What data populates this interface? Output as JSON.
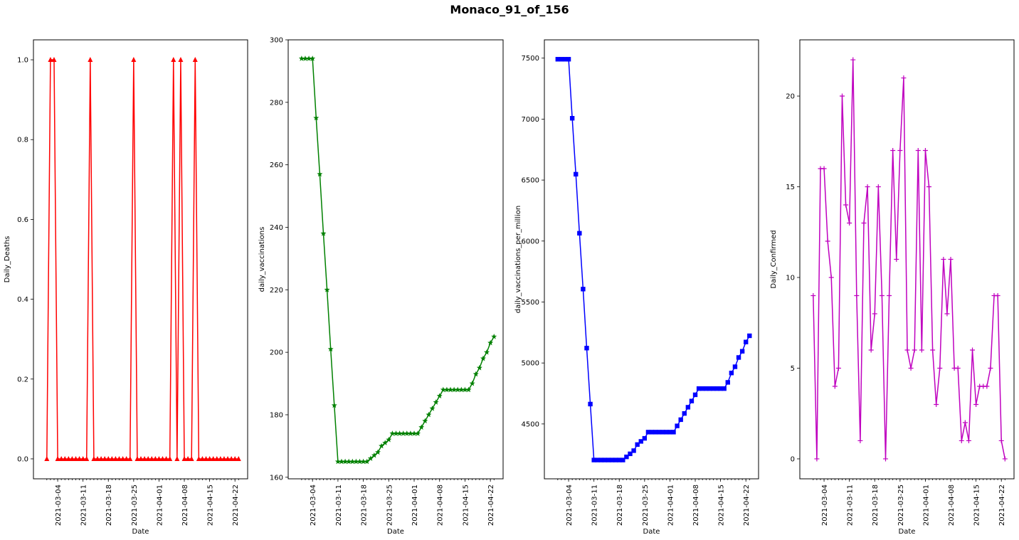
{
  "figure": {
    "suptitle": "Monaco_91_of_156"
  },
  "chart_data": [
    {
      "type": "line",
      "color": "#ff0000",
      "marker": "triangle",
      "xlabel": "Date",
      "ylabel": "Daily_Deaths",
      "ylim": [
        -0.05,
        1.05
      ],
      "yticks": [
        0.0,
        0.2,
        0.4,
        0.6,
        0.8,
        1.0
      ],
      "ytick_labels": [
        "0.0",
        "0.2",
        "0.4",
        "0.6",
        "0.8",
        "1.0"
      ],
      "xticks": [
        "2021-03-04",
        "2021-03-11",
        "2021-03-18",
        "2021-03-25",
        "2021-04-01",
        "2021-04-08",
        "2021-04-15",
        "2021-04-22"
      ],
      "x": [
        "2021-03-01",
        "2021-03-02",
        "2021-03-03",
        "2021-03-04",
        "2021-03-05",
        "2021-03-06",
        "2021-03-07",
        "2021-03-08",
        "2021-03-09",
        "2021-03-10",
        "2021-03-11",
        "2021-03-12",
        "2021-03-13",
        "2021-03-14",
        "2021-03-15",
        "2021-03-16",
        "2021-03-17",
        "2021-03-18",
        "2021-03-19",
        "2021-03-20",
        "2021-03-21",
        "2021-03-22",
        "2021-03-23",
        "2021-03-24",
        "2021-03-25",
        "2021-03-26",
        "2021-03-27",
        "2021-03-28",
        "2021-03-29",
        "2021-03-30",
        "2021-03-31",
        "2021-04-01",
        "2021-04-02",
        "2021-04-03",
        "2021-04-04",
        "2021-04-05",
        "2021-04-06",
        "2021-04-07",
        "2021-04-08",
        "2021-04-09",
        "2021-04-10",
        "2021-04-11",
        "2021-04-12",
        "2021-04-13",
        "2021-04-14",
        "2021-04-15",
        "2021-04-16",
        "2021-04-17",
        "2021-04-18",
        "2021-04-19",
        "2021-04-20",
        "2021-04-21",
        "2021-04-22",
        "2021-04-23"
      ],
      "values": [
        0,
        1,
        1,
        0,
        0,
        0,
        0,
        0,
        0,
        0,
        0,
        0,
        1,
        0,
        0,
        0,
        0,
        0,
        0,
        0,
        0,
        0,
        0,
        0,
        1,
        0,
        0,
        0,
        0,
        0,
        0,
        0,
        0,
        0,
        0,
        1,
        0,
        1,
        0,
        0,
        0,
        1,
        0,
        0,
        0,
        0,
        0,
        0,
        0,
        0,
        0,
        0,
        0,
        0
      ]
    },
    {
      "type": "line",
      "color": "#008000",
      "marker": "star",
      "xlabel": "Date",
      "ylabel": "daily_vaccinations",
      "ylim": [
        159.5,
        300
      ],
      "yticks": [
        160,
        180,
        200,
        220,
        240,
        260,
        280,
        300
      ],
      "ytick_labels": [
        "160",
        "180",
        "200",
        "220",
        "240",
        "260",
        "280",
        "300"
      ],
      "xticks": [
        "2021-03-04",
        "2021-03-11",
        "2021-03-18",
        "2021-03-25",
        "2021-04-01",
        "2021-04-08",
        "2021-04-15",
        "2021-04-22"
      ],
      "x": [
        "2021-03-01",
        "2021-03-02",
        "2021-03-03",
        "2021-03-04",
        "2021-03-05",
        "2021-03-06",
        "2021-03-07",
        "2021-03-08",
        "2021-03-09",
        "2021-03-10",
        "2021-03-11",
        "2021-03-12",
        "2021-03-13",
        "2021-03-14",
        "2021-03-15",
        "2021-03-16",
        "2021-03-17",
        "2021-03-18",
        "2021-03-19",
        "2021-03-20",
        "2021-03-21",
        "2021-03-22",
        "2021-03-23",
        "2021-03-24",
        "2021-03-25",
        "2021-03-26",
        "2021-03-27",
        "2021-03-28",
        "2021-03-29",
        "2021-03-30",
        "2021-03-31",
        "2021-04-01",
        "2021-04-02",
        "2021-04-03",
        "2021-04-04",
        "2021-04-05",
        "2021-04-06",
        "2021-04-07",
        "2021-04-08",
        "2021-04-09",
        "2021-04-10",
        "2021-04-11",
        "2021-04-12",
        "2021-04-13",
        "2021-04-14",
        "2021-04-15",
        "2021-04-16",
        "2021-04-17",
        "2021-04-18",
        "2021-04-19",
        "2021-04-20",
        "2021-04-21",
        "2021-04-22",
        "2021-04-23"
      ],
      "values": [
        294,
        294,
        294,
        294,
        275,
        257,
        238,
        220,
        201,
        183,
        165,
        165,
        165,
        165,
        165,
        165,
        165,
        165,
        165,
        166,
        167,
        168,
        170,
        171,
        172,
        174,
        174,
        174,
        174,
        174,
        174,
        174,
        174,
        176,
        178,
        180,
        182,
        184,
        186,
        188,
        188,
        188,
        188,
        188,
        188,
        188,
        188,
        190,
        193,
        195,
        198,
        200,
        203,
        205
      ]
    },
    {
      "type": "line",
      "color": "#0000ff",
      "marker": "square",
      "xlabel": "Date",
      "ylabel": "daily_vaccinations_per_million",
      "ylim": [
        4050,
        7650
      ],
      "yticks": [
        4500,
        5000,
        5500,
        6000,
        6500,
        7000,
        7500
      ],
      "ytick_labels": [
        "4500",
        "5000",
        "5500",
        "6000",
        "6500",
        "7000",
        "7500"
      ],
      "xticks": [
        "2021-03-04",
        "2021-03-11",
        "2021-03-18",
        "2021-03-25",
        "2021-04-01",
        "2021-04-08",
        "2021-04-15",
        "2021-04-22"
      ],
      "x": [
        "2021-03-01",
        "2021-03-02",
        "2021-03-03",
        "2021-03-04",
        "2021-03-05",
        "2021-03-06",
        "2021-03-07",
        "2021-03-08",
        "2021-03-09",
        "2021-03-10",
        "2021-03-11",
        "2021-03-12",
        "2021-03-13",
        "2021-03-14",
        "2021-03-15",
        "2021-03-16",
        "2021-03-17",
        "2021-03-18",
        "2021-03-19",
        "2021-03-20",
        "2021-03-21",
        "2021-03-22",
        "2021-03-23",
        "2021-03-24",
        "2021-03-25",
        "2021-03-26",
        "2021-03-27",
        "2021-03-28",
        "2021-03-29",
        "2021-03-30",
        "2021-03-31",
        "2021-04-01",
        "2021-04-02",
        "2021-04-03",
        "2021-04-04",
        "2021-04-05",
        "2021-04-06",
        "2021-04-07",
        "2021-04-08",
        "2021-04-09",
        "2021-04-10",
        "2021-04-11",
        "2021-04-12",
        "2021-04-13",
        "2021-04-14",
        "2021-04-15",
        "2021-04-16",
        "2021-04-17",
        "2021-04-18",
        "2021-04-19",
        "2021-04-20",
        "2021-04-21",
        "2021-04-22",
        "2021-04-23"
      ],
      "values": [
        7491,
        7491,
        7491,
        7491,
        7007,
        6548,
        6064,
        5606,
        5122,
        4663,
        4204,
        4204,
        4204,
        4204,
        4204,
        4204,
        4204,
        4204,
        4204,
        4230,
        4255,
        4281,
        4331,
        4357,
        4382,
        4433,
        4433,
        4433,
        4433,
        4433,
        4433,
        4433,
        4433,
        4484,
        4535,
        4586,
        4637,
        4688,
        4739,
        4790,
        4790,
        4790,
        4790,
        4790,
        4790,
        4790,
        4790,
        4841,
        4918,
        4969,
        5045,
        5096,
        5172,
        5223
      ]
    },
    {
      "type": "line",
      "color": "#bf00bf",
      "marker": "plus",
      "xlabel": "Date",
      "ylabel": "Daily_Confirmed",
      "ylim": [
        -1.1,
        23.1
      ],
      "yticks": [
        0,
        5,
        10,
        15,
        20
      ],
      "ytick_labels": [
        "0",
        "5",
        "10",
        "15",
        "20"
      ],
      "xticks": [
        "2021-03-04",
        "2021-03-11",
        "2021-03-18",
        "2021-03-25",
        "2021-04-01",
        "2021-04-08",
        "2021-04-15",
        "2021-04-22"
      ],
      "x": [
        "2021-03-01",
        "2021-03-02",
        "2021-03-03",
        "2021-03-04",
        "2021-03-05",
        "2021-03-06",
        "2021-03-07",
        "2021-03-08",
        "2021-03-09",
        "2021-03-10",
        "2021-03-11",
        "2021-03-12",
        "2021-03-13",
        "2021-03-14",
        "2021-03-15",
        "2021-03-16",
        "2021-03-17",
        "2021-03-18",
        "2021-03-19",
        "2021-03-20",
        "2021-03-21",
        "2021-03-22",
        "2021-03-23",
        "2021-03-24",
        "2021-03-25",
        "2021-03-26",
        "2021-03-27",
        "2021-03-28",
        "2021-03-29",
        "2021-03-30",
        "2021-03-31",
        "2021-04-01",
        "2021-04-02",
        "2021-04-03",
        "2021-04-04",
        "2021-04-05",
        "2021-04-06",
        "2021-04-07",
        "2021-04-08",
        "2021-04-09",
        "2021-04-10",
        "2021-04-11",
        "2021-04-12",
        "2021-04-13",
        "2021-04-14",
        "2021-04-15",
        "2021-04-16",
        "2021-04-17",
        "2021-04-18",
        "2021-04-19",
        "2021-04-20",
        "2021-04-21",
        "2021-04-22",
        "2021-04-23"
      ],
      "values": [
        9,
        0,
        16,
        16,
        12,
        10,
        4,
        5,
        20,
        14,
        13,
        22,
        9,
        1,
        13,
        15,
        6,
        8,
        15,
        9,
        0,
        9,
        17,
        11,
        17,
        21,
        6,
        5,
        6,
        17,
        6,
        17,
        15,
        6,
        3,
        5,
        11,
        8,
        11,
        5,
        5,
        1,
        2,
        1,
        6,
        3,
        4,
        4,
        4,
        5,
        9,
        9,
        1,
        0
      ]
    }
  ]
}
